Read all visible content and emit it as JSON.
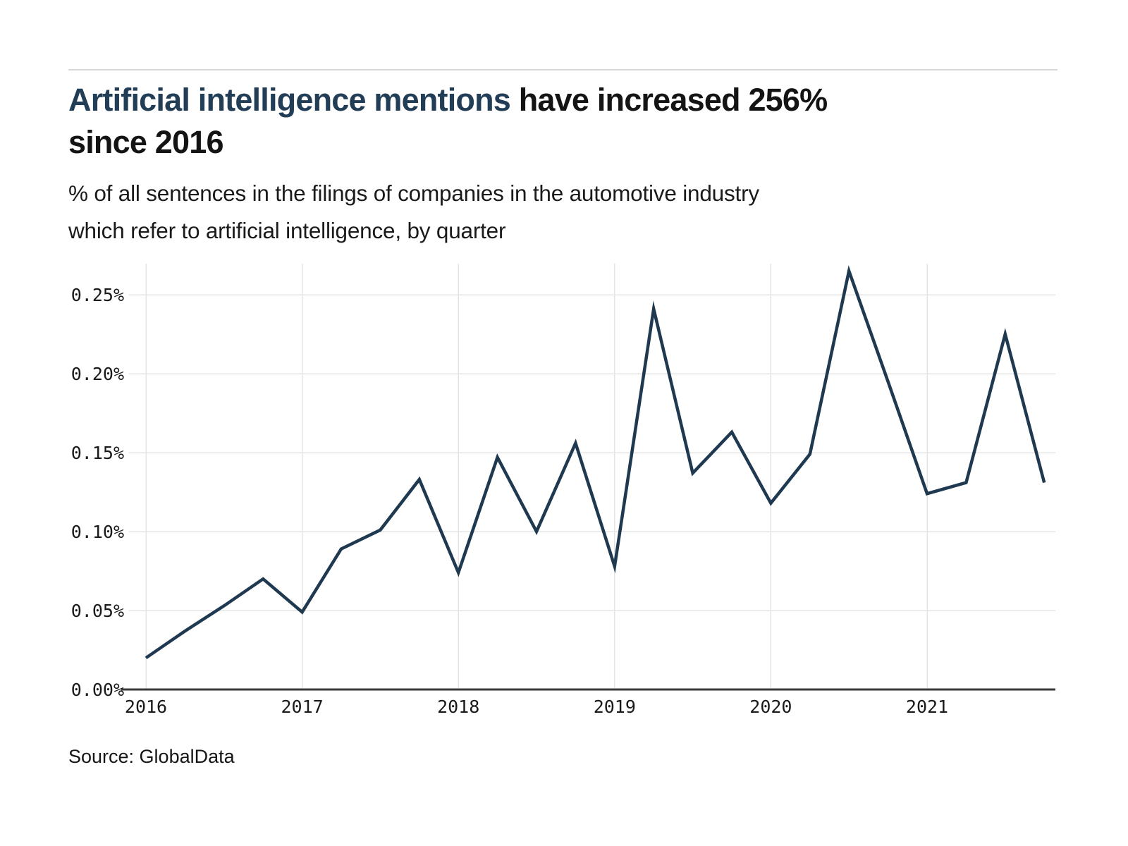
{
  "page": {
    "title": {
      "highlight": "Artificial intelligence mentions",
      "rest_line1": " have increased 256%",
      "line2": "since 2016"
    },
    "subtitle_line1": "% of all sentences in the filings of companies in the automotive industry",
    "subtitle_line2": "which refer to artificial intelligence, by quarter",
    "source": "Source: GlobalData"
  },
  "colors": {
    "title_accent": "#223d56",
    "text": "#161616",
    "line": "#1f3950",
    "grid": "#e4e4e4",
    "axis": "#3a3a3a",
    "rule": "#d8d8d8"
  },
  "chart_data": {
    "type": "line",
    "title": "Artificial intelligence mentions have increased 256% since 2016",
    "subtitle": "% of all sentences in the filings of companies in the automotive industry which refer to artificial intelligence, by quarter",
    "source": "Source: GlobalData",
    "unit": "%",
    "x": [
      "2016-Q1",
      "2016-Q2",
      "2016-Q3",
      "2016-Q4",
      "2017-Q1",
      "2017-Q2",
      "2017-Q3",
      "2017-Q4",
      "2018-Q1",
      "2018-Q2",
      "2018-Q3",
      "2018-Q4",
      "2019-Q1",
      "2019-Q2",
      "2019-Q3",
      "2019-Q4",
      "2020-Q1",
      "2020-Q2",
      "2020-Q3",
      "2020-Q4",
      "2021-Q1",
      "2021-Q2",
      "2021-Q3",
      "2021-Q4"
    ],
    "values": [
      0.02,
      0.037,
      0.053,
      0.07,
      0.049,
      0.089,
      0.101,
      0.133,
      0.074,
      0.147,
      0.1,
      0.156,
      0.078,
      0.241,
      0.137,
      0.163,
      0.118,
      0.149,
      0.265,
      0.195,
      0.124,
      0.131,
      0.225,
      0.131
    ],
    "x_tick_labels": [
      "2016",
      "2017",
      "2018",
      "2019",
      "2020",
      "2021"
    ],
    "y_ticks": [
      0.0,
      0.05,
      0.1,
      0.15,
      0.2,
      0.25
    ],
    "y_tick_labels": [
      "0.00%",
      "0.05%",
      "0.10%",
      "0.15%",
      "0.20%",
      "0.25%"
    ],
    "ylim": [
      0,
      0.27
    ],
    "grid": true,
    "legend": null
  }
}
